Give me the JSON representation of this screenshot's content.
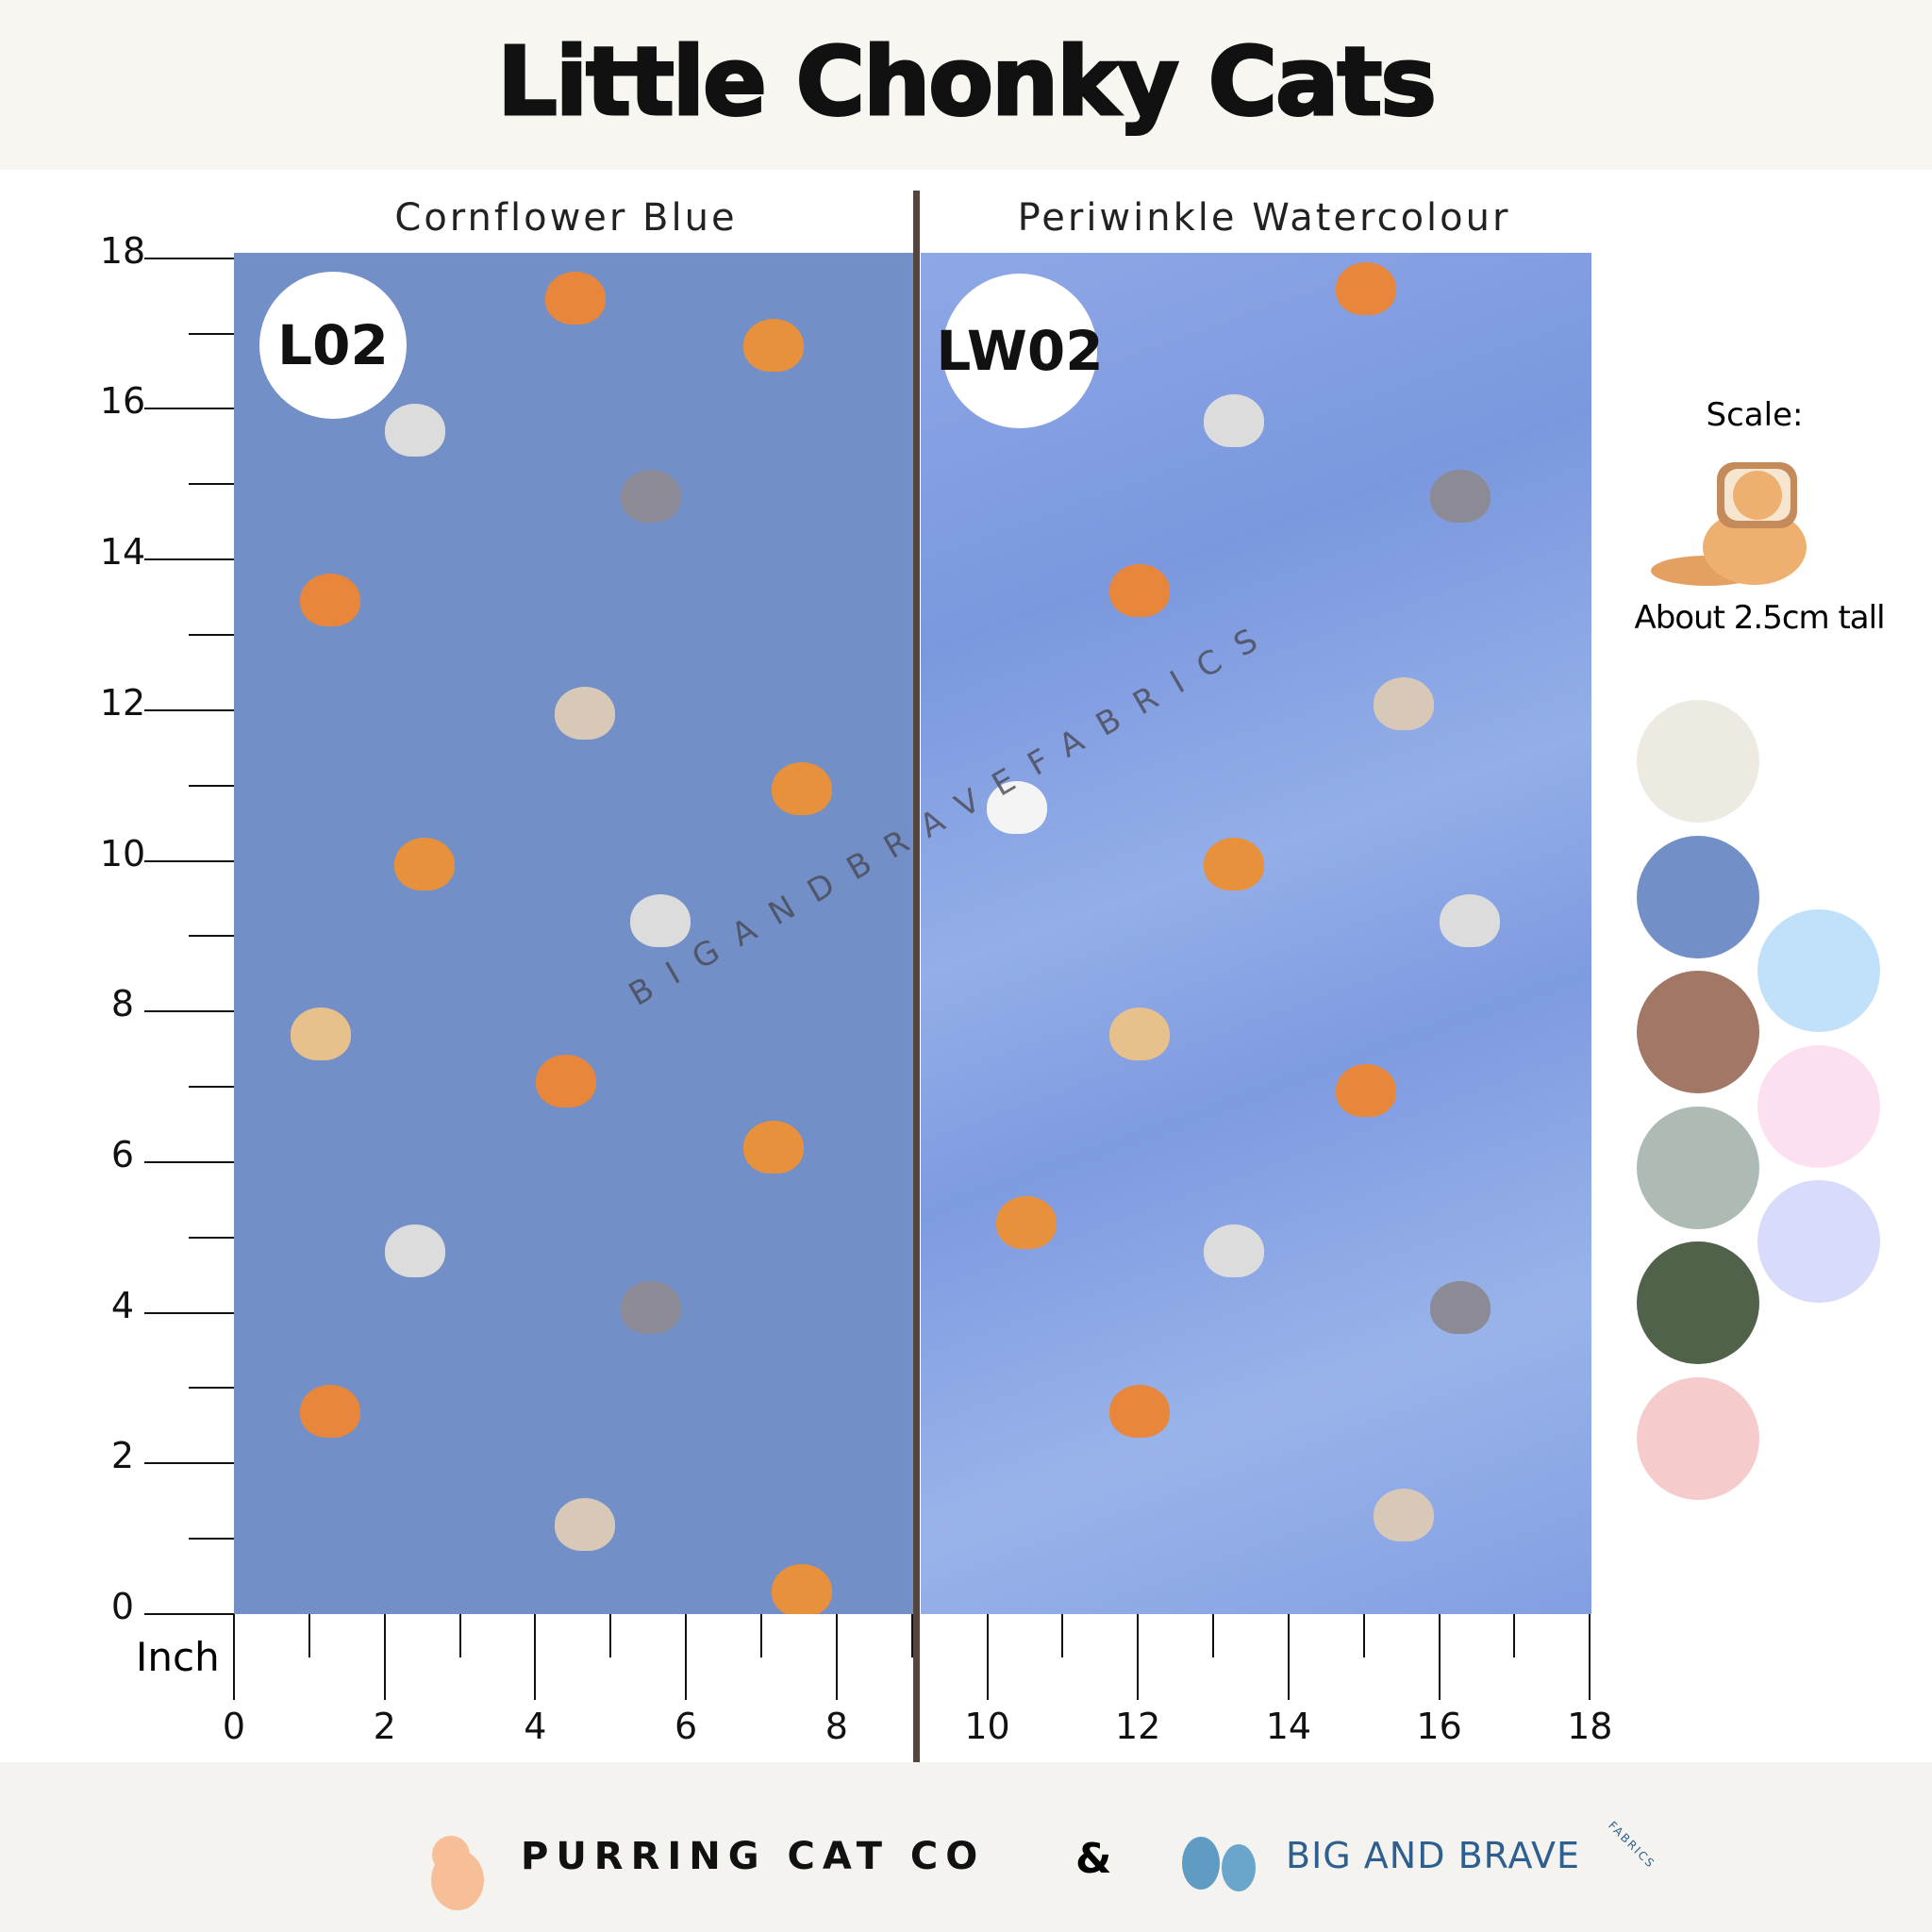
{
  "header": {
    "title": "Little Chonky Cats"
  },
  "panels": [
    {
      "title": "Cornflower Blue",
      "code": "L02",
      "color": "#728fc7"
    },
    {
      "title": "Periwinkle Watercolour",
      "code": "LW02",
      "color": "#86a2e4"
    }
  ],
  "ruler": {
    "unit": "Inch",
    "y_labels": [
      "0",
      "2",
      "4",
      "6",
      "8",
      "10",
      "12",
      "14",
      "16",
      "18"
    ],
    "x_labels": [
      "0",
      "2",
      "4",
      "6",
      "8",
      "10",
      "12",
      "14",
      "16",
      "18"
    ]
  },
  "watermark": "BIGANDBRAVEFABRICS",
  "scale": {
    "label": "Scale:",
    "note": "About 2.5cm tall"
  },
  "palette": {
    "main": [
      "#edeae2",
      "#728fc7",
      "#a37765",
      "#adbbb4",
      "#506249",
      "#f6cbcb"
    ],
    "extra": [
      "#c1e0f9",
      "#fcdff0",
      "#d9dbfb"
    ]
  },
  "footer": {
    "brand_left": "PURRING CAT CO",
    "ampersand": "&",
    "brand_right": "BIG AND BRAVE",
    "brand_right_sub": "FABRICS"
  }
}
